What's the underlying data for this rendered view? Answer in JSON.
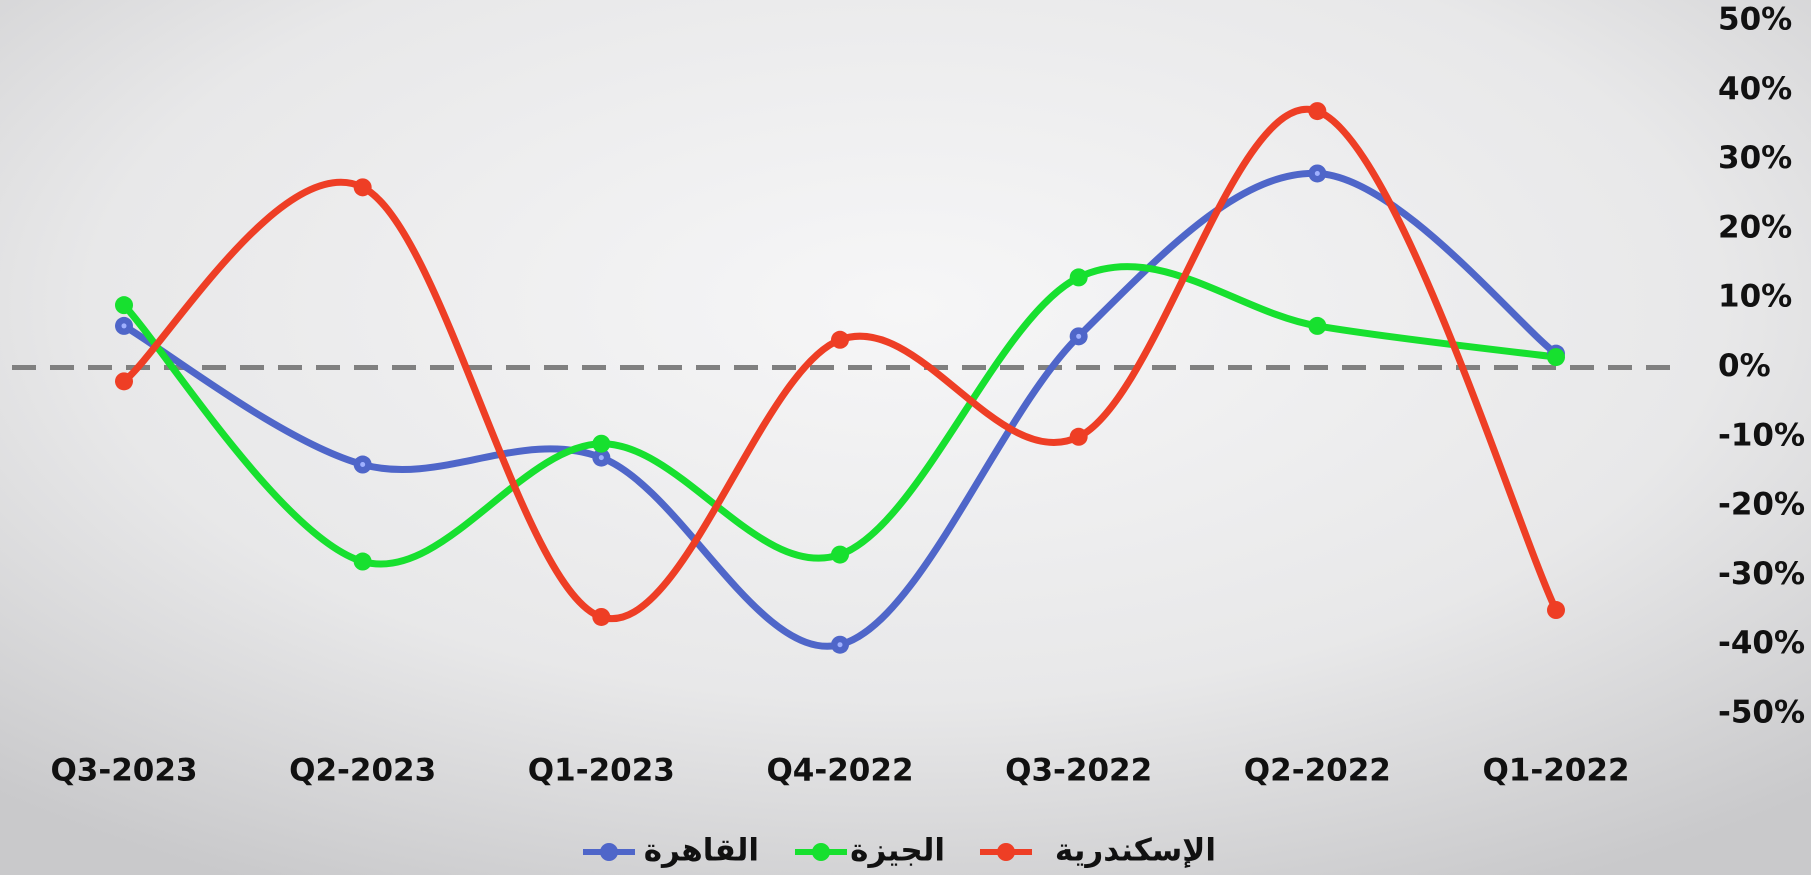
{
  "chart_data": {
    "type": "line",
    "categories": [
      "Q3-2023",
      "Q2-2023",
      "Q1-2023",
      "Q4-2022",
      "Q3-2022",
      "Q2-2022",
      "Q1-2022"
    ],
    "series": [
      {
        "name": "القاهرة",
        "color": "#4f66c9",
        "values": [
          6,
          -14,
          -13,
          -40,
          4.5,
          28,
          2
        ]
      },
      {
        "name": "الجيزة",
        "color": "#17e02f",
        "values": [
          9,
          -28,
          -11,
          -27,
          13,
          6,
          1.5
        ]
      },
      {
        "name": "الإسكندرية",
        "color": "#ee3e25",
        "values": [
          -2,
          26,
          -36,
          4,
          -10,
          37,
          -35
        ]
      }
    ],
    "ylim": [
      -50,
      50
    ],
    "yticks": [
      {
        "value": 50,
        "label": "50%"
      },
      {
        "value": 40,
        "label": "40%"
      },
      {
        "value": 30,
        "label": "30%"
      },
      {
        "value": 20,
        "label": "20%"
      },
      {
        "value": 10,
        "label": "10%"
      },
      {
        "value": 0,
        "label": "0%"
      },
      {
        "value": -10,
        "label": "-10%"
      },
      {
        "value": -20,
        "label": "-20%"
      },
      {
        "value": -30,
        "label": "-30%"
      },
      {
        "value": -40,
        "label": "-40%"
      },
      {
        "value": -50,
        "label": "-50%"
      }
    ],
    "y_axis_side": "right",
    "zero_line": true,
    "smooth": true,
    "legend": "bottom"
  }
}
